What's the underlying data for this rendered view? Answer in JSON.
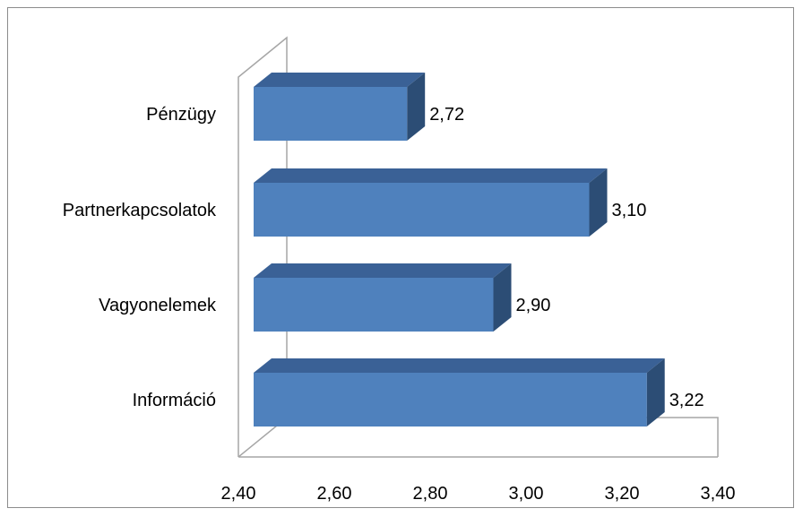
{
  "chart_data": {
    "type": "bar",
    "orientation": "horizontal",
    "style": "3d",
    "categories": [
      "Pénzügy",
      "Partnerkapcsolatok",
      "Vagyonelemek",
      "Információ"
    ],
    "values": [
      2.72,
      3.1,
      2.9,
      3.22
    ],
    "data_labels": [
      "2,72",
      "3,10",
      "2,90",
      "3,22"
    ],
    "xlim": [
      2.4,
      3.4
    ],
    "x_ticks": [
      2.4,
      2.6,
      2.8,
      3.0,
      3.2,
      3.4
    ],
    "x_tick_labels": [
      "2,40",
      "2,60",
      "2,80",
      "3,00",
      "3,20",
      "3,40"
    ],
    "title": "",
    "xlabel": "",
    "ylabel": "",
    "grid": false,
    "legend": "none",
    "colors": {
      "bar_front": "#4f81bd",
      "bar_top": "#3a6196",
      "bar_side": "#2c4d75",
      "axis": "#a6a6a6"
    }
  }
}
